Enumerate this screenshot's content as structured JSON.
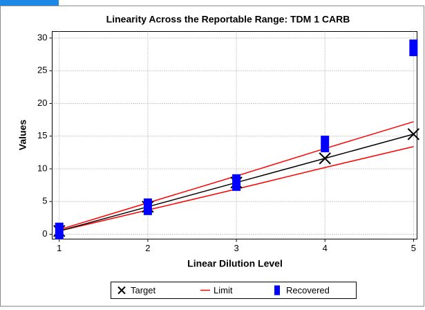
{
  "chart_data": {
    "type": "line",
    "title": "Linearity Across the Reportable Range:  TDM 1 CARB",
    "x_label": "Linear Dilution Level",
    "y_label": "Values",
    "x": [
      1,
      2,
      3,
      4,
      5
    ],
    "xlim": [
      0.92,
      5.04
    ],
    "xticks": [
      1,
      2,
      3,
      4,
      5
    ],
    "ylim": [
      -0.74,
      31
    ],
    "yticks": [
      0,
      5,
      10,
      15,
      20,
      25,
      30
    ],
    "grid": true,
    "legend": "bottom",
    "series": [
      {
        "name": "Target",
        "color": "#000000",
        "values": [
          0.5,
          4.2,
          7.9,
          11.6,
          15.3
        ]
      },
      {
        "name": "Limit",
        "color": "#ff0000",
        "upper": [
          0.7,
          4.8,
          8.9,
          13.1,
          17.2
        ],
        "lower": [
          0.5,
          3.7,
          6.9,
          10.2,
          13.4
        ]
      },
      {
        "name": "Recovered",
        "color": "#0000ff",
        "values": [
          0.5,
          4.2,
          7.9,
          13.8,
          28.5
        ]
      }
    ]
  }
}
